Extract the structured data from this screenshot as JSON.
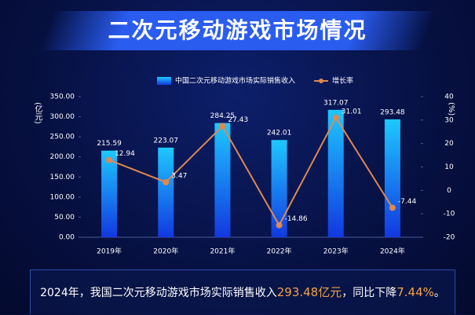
{
  "title": "二次元移动游戏市场情况",
  "chart_data": {
    "type": "bar",
    "categories": [
      "2019年",
      "2020年",
      "2021年",
      "2022年",
      "2023年",
      "2024年"
    ],
    "y_label": "(亿元)",
    "y2_label": "(%)",
    "ylim": [
      0,
      350
    ],
    "yticks": [
      {
        "value": 0,
        "label": "0.00"
      },
      {
        "value": 50,
        "label": "50.00"
      },
      {
        "value": 100,
        "label": "100.00"
      },
      {
        "value": 150,
        "label": "150.00"
      },
      {
        "value": 200,
        "label": "200.00"
      },
      {
        "value": 250,
        "label": "250.00"
      },
      {
        "value": 300,
        "label": "300.00"
      },
      {
        "value": 350,
        "label": "350.00"
      }
    ],
    "y2lim": [
      -20,
      40
    ],
    "y2ticks": [
      -20,
      -10,
      0,
      10,
      20,
      30,
      40
    ],
    "legend": "top",
    "series": [
      {
        "name": "中国二次元移动游戏市场实际销售收入",
        "type": "bar",
        "color": "#1ec8ff",
        "values": [
          215.59,
          223.07,
          284.25,
          242.01,
          317.07,
          293.48
        ]
      },
      {
        "name": "增长率",
        "type": "line",
        "axis": "y2",
        "color": "#e0884f",
        "values": [
          12.94,
          3.47,
          27.43,
          -14.86,
          31.01,
          -7.44
        ]
      }
    ]
  },
  "footer": {
    "parts": [
      "2024年，我国二次元移动游戏市场实际销售收入",
      "293.48亿元",
      "，同比下降",
      "7.44%",
      "。"
    ]
  }
}
